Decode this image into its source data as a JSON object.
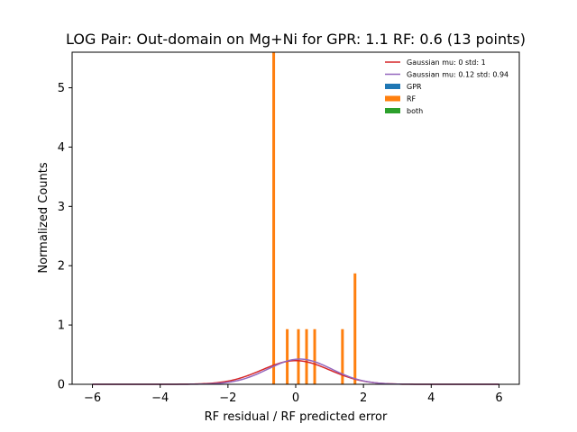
{
  "chart_data": {
    "type": "bar",
    "title": "LOG Pair: Out-domain on Mg+Ni for GPR: 1.1 RF: 0.6 (13 points)",
    "xlabel": "RF residual / RF predicted error",
    "ylabel": "Normalized Counts",
    "xlim": [
      -6.6,
      6.6
    ],
    "ylim": [
      0,
      5.6
    ],
    "xticks": [
      -6,
      -4,
      -2,
      0,
      2,
      4,
      6
    ],
    "xtick_labels": [
      "−6",
      "−4",
      "−2",
      "0",
      "2",
      "4",
      "6"
    ],
    "yticks": [
      0,
      1,
      2,
      3,
      4,
      5
    ],
    "ytick_labels": [
      "0",
      "1",
      "2",
      "3",
      "4",
      "5"
    ],
    "grid": false,
    "legend_position": "top-right",
    "legend": [
      {
        "label": "Gaussian mu: 0 std: 1",
        "kind": "line",
        "color": "#d62728"
      },
      {
        "label": "Gaussian mu: 0.12 std: 0.94",
        "kind": "line",
        "color": "#9467bd"
      },
      {
        "label": "GPR",
        "kind": "patch",
        "color": "#1f77b4"
      },
      {
        "label": "RF",
        "kind": "patch",
        "color": "#ff7f0e"
      },
      {
        "label": "both",
        "kind": "patch",
        "color": "#2ca02c"
      }
    ],
    "bar_width": 0.08,
    "bars": [
      {
        "x": -0.65,
        "y": 5.6
      },
      {
        "x": -0.25,
        "y": 0.93
      },
      {
        "x": 0.08,
        "y": 0.93
      },
      {
        "x": 0.32,
        "y": 0.93
      },
      {
        "x": 0.56,
        "y": 0.93
      },
      {
        "x": 1.38,
        "y": 0.93
      },
      {
        "x": 1.75,
        "y": 1.87
      }
    ],
    "curves": [
      {
        "name": "Gaussian mu: 0 std: 1",
        "mu": 0,
        "std": 1,
        "x_range": [
          -6,
          6
        ],
        "color": "#d62728"
      },
      {
        "name": "Gaussian mu: 0.12 std: 0.94",
        "mu": 0.12,
        "std": 0.94,
        "x_range": [
          -6,
          6
        ],
        "color": "#9467bd"
      }
    ],
    "bar_color": "#ff7f0e"
  }
}
